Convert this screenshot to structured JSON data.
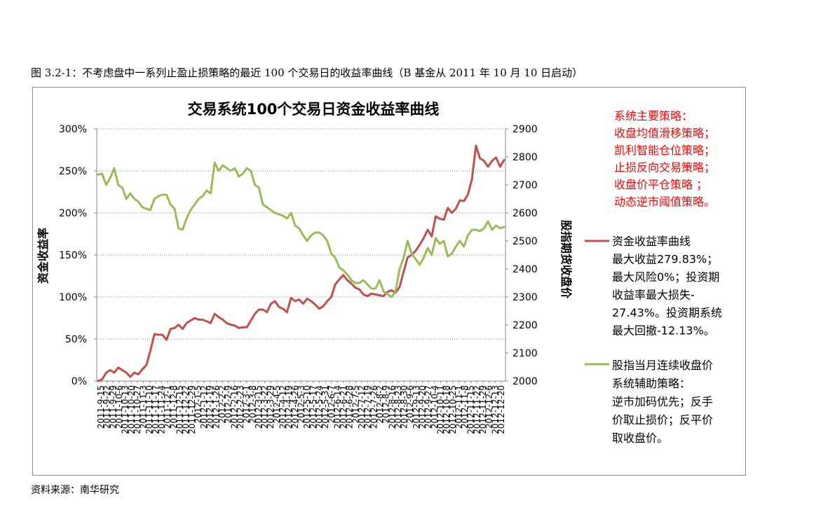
{
  "caption": "图  3.2-1：不考虑盘中一系列止盈止损策略的最近 100 个交易日的收益率曲线（B 基金从 2011 年 10 月 10 日启动）",
  "source": "资料来源：南华研究",
  "colors": {
    "red": "#c0504d",
    "green": "#9bbb59",
    "note": "#ff0000",
    "grid": "#888888"
  },
  "chart_data": {
    "type": "line",
    "title": "交易系统100个交易日资金收益率曲线",
    "ylabel": "资金收益率",
    "y2label": "股指期货收盘价",
    "ylim": [
      0,
      300
    ],
    "y2lim": [
      2000,
      2900
    ],
    "yticks": [
      "0%",
      "50%",
      "100%",
      "150%",
      "200%",
      "250%",
      "300%"
    ],
    "y2ticks": [
      "2000",
      "2100",
      "2200",
      "2300",
      "2400",
      "2500",
      "2600",
      "2700",
      "2800",
      "2900"
    ],
    "grid": "horizontal dotted",
    "x_tick_labels": [
      "2011-9-15",
      "2011-9-22",
      "2011-9-29",
      "2011-10-6",
      "2011-10-13",
      "2011-10-20",
      "2011-10-27",
      "2011-11-3",
      "2011-11-10",
      "2011-11-17",
      "2011-11-24",
      "2011-12-1",
      "2011-12-8",
      "2011-12-15",
      "2011-12-22",
      "2011-12-29",
      "2012-1-5",
      "2012-1-12",
      "2012-1-19",
      "2012-1-26",
      "2012-2-2",
      "2012-2-9",
      "2012-2-16",
      "2012-2-23",
      "2012-3-1",
      "2012-3-8",
      "2012-3-15",
      "2012-3-22",
      "2012-3-29",
      "2012-4-5",
      "2012-4-12",
      "2012-4-19",
      "2012-4-26",
      "2012-5-3",
      "2012-5-10",
      "2012-5-17",
      "2012-5-24",
      "2012-5-31",
      "2012-6-7",
      "2012-6-14",
      "2012-6-21",
      "2012-6-28",
      "2012-7-5",
      "2012-7-12",
      "2012-7-19",
      "2012-7-26",
      "2012-8-2",
      "2012-8-9",
      "2012-8-16",
      "2012-8-23",
      "2012-8-30",
      "2012-9-6",
      "2012-9-13",
      "2012-9-20",
      "2012-9-27",
      "2012-10-4",
      "2012-10-11",
      "2012-10-18",
      "2012-10-25",
      "2012-11-1",
      "2012-11-8",
      "2012-11-15",
      "2012-11-22",
      "2012-11-29",
      "2012-12-6",
      "2012-12-13",
      "2012-12-20"
    ],
    "series": [
      {
        "name": "资金收益率曲线",
        "axis": "left",
        "color": "#c0504d",
        "values": [
          0,
          2,
          10,
          13,
          10,
          16,
          13,
          10,
          5,
          10,
          8,
          14,
          19,
          36,
          56,
          55,
          55,
          49,
          62,
          63,
          67,
          62,
          69,
          72,
          75,
          73,
          73,
          71,
          69,
          80,
          76,
          73,
          69,
          67,
          66,
          63,
          64,
          64,
          72,
          80,
          85,
          85,
          82,
          92,
          95,
          88,
          86,
          82,
          99,
          95,
          97,
          92,
          98,
          95,
          91,
          86,
          89,
          95,
          100,
          115,
          121,
          126,
          120,
          116,
          111,
          109,
          103,
          101,
          104,
          103,
          102,
          101,
          106,
          108,
          105,
          112,
          130,
          147,
          150,
          155,
          162,
          170,
          180,
          172,
          196,
          193,
          192,
          206,
          200,
          205,
          215,
          214,
          222,
          240,
          280,
          265,
          262,
          255,
          262,
          266,
          255,
          263
        ]
      },
      {
        "name": "股指当月连续收盘价",
        "axis": "right",
        "color": "#9bbb59",
        "values": [
          2737,
          2740,
          2700,
          2725,
          2760,
          2700,
          2690,
          2650,
          2670,
          2650,
          2640,
          2620,
          2615,
          2610,
          2650,
          2660,
          2665,
          2665,
          2630,
          2615,
          2545,
          2540,
          2580,
          2610,
          2630,
          2650,
          2660,
          2680,
          2670,
          2780,
          2750,
          2770,
          2760,
          2750,
          2760,
          2730,
          2740,
          2760,
          2750,
          2700,
          2690,
          2630,
          2620,
          2610,
          2600,
          2595,
          2590,
          2580,
          2600,
          2555,
          2545,
          2520,
          2500,
          2520,
          2530,
          2530,
          2520,
          2500,
          2455,
          2440,
          2405,
          2395,
          2380,
          2360,
          2350,
          2350,
          2360,
          2345,
          2330,
          2330,
          2360,
          2320,
          2310,
          2300,
          2320,
          2400,
          2440,
          2500,
          2455,
          2435,
          2415,
          2440,
          2475,
          2450,
          2510,
          2490,
          2500,
          2445,
          2455,
          2480,
          2500,
          2480,
          2520,
          2540,
          2540,
          2535,
          2545,
          2570,
          2540,
          2555,
          2545,
          2550
        ]
      }
    ]
  },
  "annotations": {
    "strategy_lines": [
      "系统主要策略：",
      "收盘均值滑移策略；",
      "凯利智能仓位策略；",
      "止损反向交易策略；",
      "收盘价平仓策略 ；",
      "动态逆市阈值策略。"
    ],
    "red_legend_lines": [
      "资金收益率曲线",
      "最大收益279.83%；",
      "最大风险0%；投资期",
      "收益率最大损失-",
      "27.43%。投资期系统",
      "最大回撤-12.13%。"
    ],
    "green_legend_lines": [
      "股指当月连续收盘价",
      "系统辅助策略：",
      "逆市加码优先；反手",
      "价取止损价；反平价",
      "取收盘价。"
    ]
  }
}
